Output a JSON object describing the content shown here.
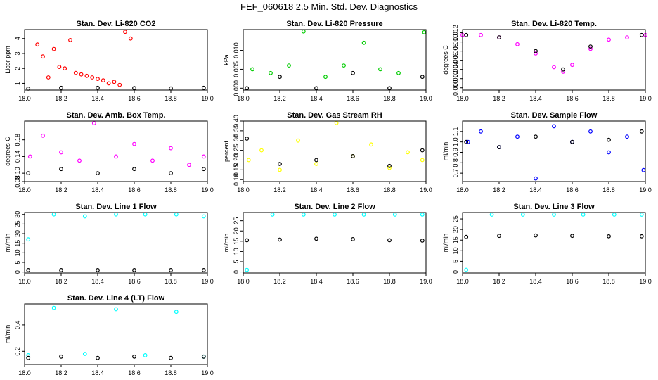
{
  "title": "FEF_060618  2.5 Min. Std. Dev. Diagnostics",
  "chart_data": [
    {
      "type": "scatter",
      "title": "Stan. Dev. Li-820 CO2",
      "ylabel": "Licor ppm",
      "xlim": [
        18.0,
        19.0
      ],
      "ylim": [
        0.55,
        4.6
      ],
      "xticks": [
        "18.0",
        "18.2",
        "18.4",
        "18.6",
        "18.8",
        "19.0"
      ],
      "yticks": [
        1,
        2,
        3,
        4
      ],
      "ytick_labels": [
        "1",
        "2",
        "3",
        "4"
      ],
      "colors": {
        "main": "#ff0000",
        "overlay": "#000000"
      },
      "series": [
        {
          "x": [
            18.07,
            18.1,
            18.13,
            18.16,
            18.19,
            18.22,
            18.25,
            18.28,
            18.31,
            18.34,
            18.37,
            18.4,
            18.43,
            18.46,
            18.49,
            18.52,
            18.55,
            18.58
          ],
          "y": [
            3.6,
            2.8,
            1.4,
            3.3,
            2.1,
            2.0,
            3.9,
            1.7,
            1.6,
            1.5,
            1.4,
            1.3,
            1.2,
            1.0,
            1.1,
            0.9,
            4.45,
            4.0
          ]
        },
        {
          "x": [
            18.02,
            18.2,
            18.4,
            18.6,
            18.8,
            18.98
          ],
          "y": [
            0.65,
            0.7,
            0.7,
            0.68,
            0.66,
            0.7
          ]
        }
      ]
    },
    {
      "type": "scatter",
      "title": "Stan. Dev. Li-820 Pressure",
      "ylabel": "kPa",
      "xlim": [
        18.0,
        19.0
      ],
      "ylim": [
        -0.0005,
        0.0155
      ],
      "xticks": [
        "18.0",
        "18.2",
        "18.4",
        "18.6",
        "18.8",
        "19.0"
      ],
      "yticks": [
        0.0,
        0.005,
        0.01
      ],
      "ytick_labels": [
        "0.000",
        "0.005",
        "0.010"
      ],
      "colors": {
        "main": "#00cc00",
        "overlay": "#000000"
      },
      "series": [
        {
          "x": [
            18.05,
            18.15,
            18.25,
            18.33,
            18.45,
            18.55,
            18.66,
            18.75,
            18.85,
            18.99
          ],
          "y": [
            0.005,
            0.004,
            0.006,
            0.015,
            0.003,
            0.006,
            0.012,
            0.005,
            0.004,
            0.0148
          ]
        },
        {
          "x": [
            18.02,
            18.2,
            18.4,
            18.6,
            18.8,
            18.98
          ],
          "y": [
            0.0,
            0.003,
            0.0,
            0.004,
            0.0,
            0.003
          ]
        }
      ]
    },
    {
      "type": "scatter",
      "title": "Stan. Dev. Li-820 Temp.",
      "ylabel": "degrees C",
      "xlim": [
        18.0,
        19.0
      ],
      "ylim": [
        -0.0005,
        0.0127
      ],
      "xticks": [
        "18.0",
        "18.2",
        "18.4",
        "18.6",
        "18.8",
        "19.0"
      ],
      "yticks": [
        0.0,
        0.002,
        0.004,
        0.006,
        0.008,
        0.01,
        0.012
      ],
      "ytick_labels": [
        "0.000",
        "0.002",
        "0.004",
        "0.006",
        "0.008",
        "0.010",
        "0.012"
      ],
      "colors": {
        "main": "#ff00ff",
        "overlay": "#000000"
      },
      "series": [
        {
          "x": [
            18.0,
            18.1,
            18.2,
            18.3,
            18.4,
            18.5,
            18.55,
            18.6,
            18.7,
            18.8,
            18.9,
            19.0
          ],
          "y": [
            0.0115,
            0.0115,
            0.011,
            0.0095,
            0.0075,
            0.0045,
            0.0035,
            0.005,
            0.0085,
            0.0105,
            0.011,
            0.0115
          ]
        },
        {
          "x": [
            18.02,
            18.2,
            18.4,
            18.55,
            18.7,
            18.98
          ],
          "y": [
            0.0115,
            0.011,
            0.008,
            0.004,
            0.009,
            0.0115
          ]
        }
      ]
    },
    {
      "type": "scatter",
      "title": "Stan. Dev. Amb. Box Temp.",
      "ylabel": "degrees C",
      "xlim": [
        18.0,
        19.0
      ],
      "ylim": [
        0.08,
        0.225
      ],
      "xticks": [
        "18.0",
        "18.2",
        "18.4",
        "18.6",
        "18.8",
        "19.0"
      ],
      "yticks": [
        0.08,
        0.1,
        0.14,
        0.18
      ],
      "ytick_labels": [
        "0.08",
        "0.10",
        "0.14",
        "0.18"
      ],
      "colors": {
        "main": "#ff00ff",
        "overlay": "#000000"
      },
      "series": [
        {
          "x": [
            18.03,
            18.1,
            18.2,
            18.3,
            18.38,
            18.5,
            18.6,
            18.7,
            18.8,
            18.9,
            18.98
          ],
          "y": [
            0.14,
            0.19,
            0.15,
            0.13,
            0.22,
            0.14,
            0.17,
            0.13,
            0.16,
            0.12,
            0.14
          ]
        },
        {
          "x": [
            18.02,
            18.2,
            18.4,
            18.6,
            18.8,
            18.98
          ],
          "y": [
            0.1,
            0.11,
            0.1,
            0.11,
            0.1,
            0.11
          ]
        }
      ]
    },
    {
      "type": "scatter",
      "title": "Stan. Dev. Gas Stream RH",
      "ylabel": "percent",
      "xlim": [
        18.0,
        19.0
      ],
      "ylim": [
        0.09,
        0.4
      ],
      "xticks": [
        "18.0",
        "18.2",
        "18.4",
        "18.6",
        "18.8",
        "19.0"
      ],
      "yticks": [
        0.1,
        0.15,
        0.2,
        0.25,
        0.3,
        0.35,
        0.4
      ],
      "ytick_labels": [
        "0.10",
        "0.15",
        "0.20",
        "0.25",
        "0.30",
        "0.35",
        "0.40"
      ],
      "colors": {
        "main": "#ffff00",
        "overlay": "#000000"
      },
      "series": [
        {
          "x": [
            18.03,
            18.1,
            18.2,
            18.3,
            18.4,
            18.51,
            18.6,
            18.7,
            18.8,
            18.9,
            18.98
          ],
          "y": [
            0.2,
            0.25,
            0.15,
            0.3,
            0.18,
            0.39,
            0.22,
            0.28,
            0.16,
            0.24,
            0.2
          ]
        },
        {
          "x": [
            18.02,
            18.2,
            18.4,
            18.6,
            18.8,
            18.98
          ],
          "y": [
            0.31,
            0.18,
            0.2,
            0.22,
            0.17,
            0.25
          ]
        }
      ]
    },
    {
      "type": "scatter",
      "title": "Stan. Dev. Sample Flow",
      "ylabel": "ml/min",
      "xlim": [
        18.0,
        19.0
      ],
      "ylim": [
        0.62,
        1.2
      ],
      "xticks": [
        "18.0",
        "18.2",
        "18.4",
        "18.6",
        "18.8",
        "19.0"
      ],
      "yticks": [
        0.7,
        0.8,
        0.9,
        1.0,
        1.1
      ],
      "ytick_labels": [
        "0.7",
        "0.8",
        "0.9",
        "1.0",
        "1.1"
      ],
      "colors": {
        "main": "#0000ff",
        "overlay": "#000000"
      },
      "series": [
        {
          "x": [
            18.03,
            18.1,
            18.2,
            18.3,
            18.4,
            18.5,
            18.6,
            18.7,
            18.8,
            18.9,
            18.99
          ],
          "y": [
            1.0,
            1.1,
            0.95,
            1.05,
            0.65,
            1.15,
            1.0,
            1.1,
            0.9,
            1.05,
            0.73
          ]
        },
        {
          "x": [
            18.02,
            18.2,
            18.4,
            18.6,
            18.8,
            18.98
          ],
          "y": [
            1.0,
            0.95,
            1.05,
            1.0,
            1.02,
            1.1
          ]
        }
      ]
    },
    {
      "type": "scatter",
      "title": "Stan. Dev. Line 1 Flow",
      "ylabel": "ml/min",
      "xlim": [
        18.0,
        19.0
      ],
      "ylim": [
        -0.5,
        31
      ],
      "xticks": [
        "18.0",
        "18.2",
        "18.4",
        "18.6",
        "18.8",
        "19.0"
      ],
      "yticks": [
        0,
        5,
        10,
        15,
        20,
        25,
        30
      ],
      "ytick_labels": [
        "0",
        "5",
        "10",
        "15",
        "20",
        "25",
        "30"
      ],
      "colors": {
        "main": "#00ffff",
        "overlay": "#000000"
      },
      "series": [
        {
          "x": [
            18.02,
            18.16,
            18.33,
            18.5,
            18.66,
            18.83,
            18.98
          ],
          "y": [
            17,
            30,
            29,
            30,
            30,
            30,
            29
          ]
        },
        {
          "x": [
            18.02,
            18.2,
            18.4,
            18.6,
            18.8,
            18.98
          ],
          "y": [
            1,
            1,
            1,
            1,
            1,
            1
          ]
        }
      ]
    },
    {
      "type": "scatter",
      "title": "Stan. Dev. Line 2 Flow",
      "ylabel": "ml/min",
      "xlim": [
        18.0,
        19.0
      ],
      "ylim": [
        -0.5,
        29
      ],
      "xticks": [
        "18.0",
        "18.2",
        "18.4",
        "18.6",
        "18.8",
        "19.0"
      ],
      "yticks": [
        0,
        5,
        10,
        15,
        20,
        25
      ],
      "ytick_labels": [
        "0",
        "5",
        "10",
        "15",
        "20",
        "25"
      ],
      "colors": {
        "main": "#00ffff",
        "overlay": "#000000"
      },
      "series": [
        {
          "x": [
            18.02,
            18.16,
            18.33,
            18.5,
            18.66,
            18.83,
            18.98
          ],
          "y": [
            1,
            28,
            28,
            28,
            28,
            28,
            28
          ]
        },
        {
          "x": [
            18.02,
            18.2,
            18.4,
            18.6,
            18.8,
            18.98
          ],
          "y": [
            15.5,
            15.8,
            16.2,
            16.0,
            15.5,
            15.3
          ]
        }
      ]
    },
    {
      "type": "scatter",
      "title": "Stan. Dev. Line 3 Flow",
      "ylabel": "ml/min",
      "xlim": [
        18.0,
        19.0
      ],
      "ylim": [
        -0.5,
        28
      ],
      "xticks": [
        "18.0",
        "18.2",
        "18.4",
        "18.6",
        "18.8",
        "19.0"
      ],
      "yticks": [
        0,
        5,
        10,
        15,
        20,
        25
      ],
      "ytick_labels": [
        "0",
        "5",
        "10",
        "15",
        "20",
        "25"
      ],
      "colors": {
        "main": "#00ffff",
        "overlay": "#000000"
      },
      "series": [
        {
          "x": [
            18.02,
            18.16,
            18.33,
            18.5,
            18.66,
            18.83,
            18.98
          ],
          "y": [
            1,
            27,
            27,
            27,
            27,
            27,
            27
          ]
        },
        {
          "x": [
            18.02,
            18.2,
            18.4,
            18.6,
            18.8,
            18.98
          ],
          "y": [
            16.5,
            17.0,
            17.2,
            17.0,
            16.8,
            16.8
          ]
        }
      ]
    },
    {
      "type": "scatter",
      "title": "Stan. Dev. Line 4 (LT) Flow",
      "ylabel": "ml/min",
      "xlim": [
        18.0,
        19.0
      ],
      "ylim": [
        0.1,
        0.56
      ],
      "xticks": [
        "18.0",
        "18.2",
        "18.4",
        "18.6",
        "18.8",
        "19.0"
      ],
      "yticks": [
        0.2,
        0.4
      ],
      "ytick_labels": [
        "0.2",
        "0.4"
      ],
      "colors": {
        "main": "#00ffff",
        "overlay": "#000000"
      },
      "series": [
        {
          "x": [
            18.02,
            18.16,
            18.33,
            18.5,
            18.66,
            18.83,
            18.98
          ],
          "y": [
            0.17,
            0.53,
            0.18,
            0.52,
            0.17,
            0.5,
            0.16
          ]
        },
        {
          "x": [
            18.02,
            18.2,
            18.4,
            18.6,
            18.8,
            18.98
          ],
          "y": [
            0.15,
            0.16,
            0.15,
            0.16,
            0.15,
            0.16
          ]
        }
      ]
    }
  ]
}
